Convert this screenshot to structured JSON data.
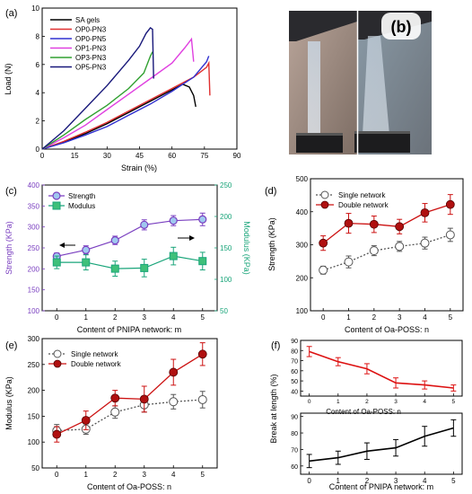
{
  "chart_data": [
    {
      "panel": "(a)",
      "type": "line",
      "xlabel": "Strain (%)",
      "ylabel": "Load (N)",
      "xlim": [
        0,
        90
      ],
      "ylim": [
        0,
        10
      ],
      "xticks": [
        0,
        15,
        30,
        45,
        60,
        75,
        90
      ],
      "yticks": [
        0,
        2,
        4,
        6,
        8,
        10
      ],
      "legend_position": "top-left",
      "series": [
        {
          "name": "SA gels",
          "color": "#000000",
          "x": [
            0,
            10,
            20,
            30,
            40,
            50,
            60,
            65,
            68,
            70,
            71
          ],
          "y": [
            0,
            0.5,
            1.1,
            1.8,
            2.6,
            3.4,
            4.2,
            4.6,
            4.4,
            3.8,
            3.0
          ]
        },
        {
          "name": "OP0-PN3",
          "color": "#e03030",
          "x": [
            0,
            10,
            20,
            30,
            40,
            50,
            60,
            70,
            76,
            77,
            77.5
          ],
          "y": [
            0,
            0.55,
            1.2,
            1.9,
            2.7,
            3.5,
            4.3,
            5.1,
            5.8,
            6.1,
            3.8
          ]
        },
        {
          "name": "OP0-PN5",
          "color": "#3030d0",
          "x": [
            0,
            10,
            20,
            30,
            40,
            50,
            60,
            70,
            76,
            77
          ],
          "y": [
            0,
            0.45,
            1.0,
            1.6,
            2.4,
            3.2,
            4.1,
            5.1,
            6.2,
            6.6
          ]
        },
        {
          "name": "OP1-PN3",
          "color": "#e040e0",
          "x": [
            0,
            10,
            20,
            30,
            40,
            50,
            60,
            66,
            69,
            70
          ],
          "y": [
            0,
            0.8,
            1.7,
            2.8,
            3.9,
            5.0,
            6.1,
            7.2,
            7.8,
            6.2
          ]
        },
        {
          "name": "OP3-PN3",
          "color": "#30a030",
          "x": [
            0,
            10,
            20,
            30,
            40,
            47,
            50,
            51
          ],
          "y": [
            0,
            1.0,
            2.1,
            3.1,
            4.3,
            5.4,
            6.6,
            6.9
          ]
        },
        {
          "name": "OP5-PN3",
          "color": "#18187a",
          "x": [
            0,
            10,
            20,
            30,
            40,
            45,
            48,
            50,
            51,
            51.5
          ],
          "y": [
            0,
            1.3,
            2.9,
            4.5,
            6.3,
            7.3,
            8.2,
            8.6,
            8.5,
            5.0
          ]
        }
      ]
    },
    {
      "panel": "(b)",
      "type": "photo",
      "label": "(b)"
    },
    {
      "panel": "(c)",
      "type": "line",
      "xlabel": "Content of PNIPA network: m",
      "ylabel": "Strength (KPa)",
      "y2label": "Modulus (KPa)",
      "x": [
        0,
        1,
        2,
        3,
        4,
        5
      ],
      "xlim": [
        -0.5,
        5.5
      ],
      "ylim": [
        100,
        400
      ],
      "y2lim": [
        50,
        250
      ],
      "yticks": [
        100,
        150,
        200,
        250,
        300,
        350,
        400
      ],
      "y2ticks": [
        50,
        100,
        150,
        200,
        250
      ],
      "legend_position": "top-left",
      "series": [
        {
          "name": "Strength",
          "axis": "left",
          "color": "#7a3fc0",
          "marker": "circle",
          "values": [
            230,
            245,
            268,
            305,
            315,
            318
          ],
          "errors": [
            8,
            10,
            10,
            12,
            12,
            15
          ]
        },
        {
          "name": "Modulus",
          "axis": "right",
          "color": "#1aa57a",
          "marker": "square",
          "values": [
            127,
            127,
            117,
            118,
            137,
            129
          ],
          "errors": [
            10,
            12,
            12,
            14,
            14,
            14
          ]
        }
      ]
    },
    {
      "panel": "(d)",
      "type": "line",
      "xlabel": "Content of Oa-POSS: n",
      "ylabel": "Strength (KPa)",
      "x": [
        0,
        1,
        2,
        3,
        4,
        5
      ],
      "xlim": [
        -0.5,
        5.5
      ],
      "ylim": [
        100,
        500
      ],
      "yticks": [
        100,
        200,
        300,
        400,
        500
      ],
      "legend_position": "top-left",
      "series": [
        {
          "name": "Single network",
          "color": "#555555",
          "marker": "open-circle",
          "style": "dotted",
          "values": [
            223,
            248,
            282,
            295,
            305,
            330
          ],
          "errors": [
            12,
            18,
            15,
            15,
            18,
            20
          ]
        },
        {
          "name": "Double network",
          "color": "#cc1111",
          "marker": "filled-circle",
          "style": "solid",
          "values": [
            305,
            365,
            362,
            355,
            397,
            422
          ],
          "errors": [
            22,
            30,
            25,
            22,
            28,
            30
          ]
        }
      ]
    },
    {
      "panel": "(e)",
      "type": "line",
      "xlabel": "Content of Oa-POSS: n",
      "ylabel": "Modulus (KPa)",
      "x": [
        0,
        1,
        2,
        3,
        4,
        5
      ],
      "xlim": [
        -0.5,
        5.5
      ],
      "ylim": [
        50,
        300
      ],
      "yticks": [
        50,
        100,
        150,
        200,
        250,
        300
      ],
      "legend_position": "top-left",
      "series": [
        {
          "name": "Single network",
          "color": "#555555",
          "marker": "open-circle",
          "style": "dotted",
          "values": [
            122,
            125,
            158,
            172,
            178,
            182
          ],
          "errors": [
            12,
            10,
            12,
            14,
            14,
            16
          ]
        },
        {
          "name": "Double network",
          "color": "#cc1111",
          "marker": "filled-circle",
          "style": "solid",
          "values": [
            115,
            142,
            185,
            183,
            235,
            270
          ],
          "errors": [
            15,
            18,
            15,
            25,
            25,
            22
          ]
        }
      ]
    },
    {
      "panel": "(f)",
      "type": "line",
      "ylabel": "Break at length (%)",
      "subplots": [
        {
          "xlabel": "Content of Oa-POSS: n",
          "color": "#dd1111",
          "x": [
            0,
            1,
            2,
            3,
            4,
            5
          ],
          "xlim": [
            -0.3,
            5.3
          ],
          "ylim": [
            35,
            90
          ],
          "yticks": [
            40,
            50,
            60,
            70,
            80,
            90
          ],
          "values": [
            79,
            69,
            62,
            48,
            46,
            43
          ],
          "errors": [
            5,
            4,
            5,
            5,
            4,
            3
          ]
        },
        {
          "xlabel": "Content of PNIPA network: m",
          "color": "#000000",
          "x": [
            0,
            1,
            2,
            3,
            4,
            5
          ],
          "xlim": [
            -0.3,
            5.3
          ],
          "ylim": [
            55,
            92
          ],
          "yticks": [
            60,
            70,
            80,
            90
          ],
          "values": [
            63,
            65,
            69,
            71,
            78,
            83
          ],
          "errors": [
            4,
            4,
            5,
            5,
            6,
            5
          ]
        }
      ]
    }
  ]
}
